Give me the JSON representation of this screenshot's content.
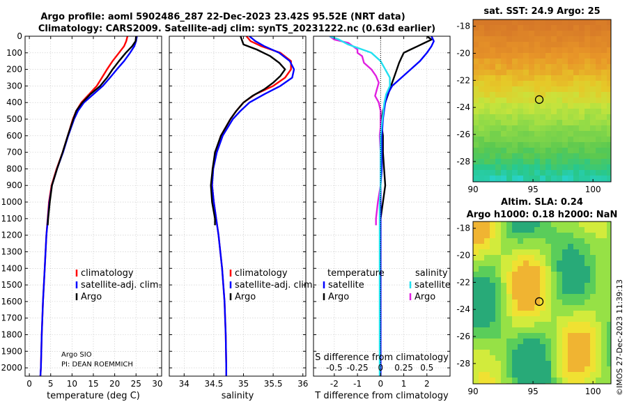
{
  "header": {
    "title_line1": "Argo profile: aoml 5902486_287 22-Dec-2023 23.42S 95.52E (NRT data)",
    "title_line2": "Climatology: CARS2009. Satellite-adj clim: synTS_20231222.nc (0.63d earlier)"
  },
  "colors": {
    "climatology": "#ff0000",
    "satellite": "#0000ff",
    "argo": "#000000",
    "sat_temp": "#22e0f0",
    "sat_sal": "#e020e0"
  },
  "credit": {
    "line1": "Argo SIO",
    "line2": "PI: DEAN ROEMMICH"
  },
  "imos_stamp": "©IMOS 27-Dec-2023 11:39:13",
  "chart_data": [
    {
      "id": "temperature",
      "type": "line",
      "xlabel": "temperature (deg C)",
      "xlim": [
        -1,
        31
      ],
      "xticks": [
        0,
        5,
        10,
        15,
        20,
        25,
        30
      ],
      "ylim": [
        0,
        2050
      ],
      "yticks": [
        0,
        100,
        200,
        300,
        400,
        500,
        600,
        700,
        800,
        900,
        1000,
        1100,
        1200,
        1300,
        1400,
        1500,
        1600,
        1700,
        1800,
        1900,
        2000
      ],
      "legend": [
        "climatology",
        "satellite-adj. clim.",
        "Argo"
      ],
      "series": [
        {
          "name": "climatology",
          "depth": [
            0,
            30,
            60,
            100,
            150,
            200,
            250,
            300,
            350,
            400,
            450,
            500,
            600,
            700,
            800,
            900,
            1000,
            1200,
            1400,
            1600,
            1800,
            2000,
            2050
          ],
          "values": [
            23.0,
            22.7,
            22.2,
            21.0,
            19.5,
            18.2,
            17.0,
            15.8,
            14.0,
            12.2,
            11.0,
            10.2,
            9.0,
            7.8,
            6.4,
            5.2,
            4.6,
            4.0,
            3.6,
            3.2,
            2.9,
            2.7,
            2.6
          ]
        },
        {
          "name": "satellite-adj. clim.",
          "depth": [
            0,
            30,
            60,
            100,
            150,
            200,
            250,
            300,
            350,
            400,
            450,
            500,
            600,
            700,
            800,
            900,
            1000,
            1200,
            1400,
            1600,
            1800,
            2000,
            2050
          ],
          "values": [
            25.2,
            25.0,
            24.6,
            23.6,
            22.2,
            20.5,
            18.9,
            17.2,
            15.0,
            12.8,
            11.4,
            10.5,
            9.1,
            7.9,
            6.5,
            5.3,
            4.7,
            4.0,
            3.6,
            3.2,
            2.9,
            2.7,
            2.6
          ]
        },
        {
          "name": "Argo",
          "depth": [
            0,
            30,
            60,
            100,
            150,
            200,
            250,
            300,
            350,
            400,
            450,
            500,
            600,
            700,
            800,
            900,
            1000,
            1100,
            1140
          ],
          "values": [
            25.0,
            24.9,
            24.1,
            22.6,
            21.0,
            19.5,
            18.2,
            16.6,
            14.3,
            12.4,
            11.0,
            10.3,
            9.0,
            7.8,
            6.5,
            5.3,
            4.8,
            4.4,
            4.3
          ]
        }
      ]
    },
    {
      "id": "salinity",
      "type": "line",
      "xlabel": "salinity",
      "xlim": [
        33.75,
        36.05
      ],
      "xticks": [
        34,
        34.5,
        35,
        35.5,
        36
      ],
      "ylim": [
        0,
        2050
      ],
      "legend": [
        "climatology",
        "satellite-adj. clim.",
        "Argo"
      ],
      "series": [
        {
          "name": "climatology",
          "depth": [
            0,
            30,
            60,
            100,
            150,
            200,
            250,
            300,
            350,
            400,
            450,
            500,
            600,
            700,
            800,
            900,
            1000,
            1200,
            1400,
            1600,
            1800,
            2000,
            2050
          ],
          "values": [
            35.05,
            35.12,
            35.3,
            35.62,
            35.8,
            35.8,
            35.7,
            35.5,
            35.2,
            35.0,
            34.88,
            34.78,
            34.62,
            34.53,
            34.48,
            34.47,
            34.5,
            34.58,
            34.64,
            34.68,
            34.7,
            34.71,
            34.71
          ]
        },
        {
          "name": "satellite-adj. clim.",
          "depth": [
            0,
            30,
            60,
            100,
            150,
            200,
            250,
            300,
            350,
            400,
            450,
            500,
            600,
            700,
            800,
            900,
            1000,
            1200,
            1400,
            1600,
            1800,
            2000,
            2050
          ],
          "values": [
            35.1,
            35.2,
            35.35,
            35.6,
            35.78,
            35.85,
            35.82,
            35.62,
            35.35,
            35.1,
            34.95,
            34.82,
            34.65,
            34.55,
            34.49,
            34.47,
            34.5,
            34.58,
            34.64,
            34.68,
            34.7,
            34.71,
            34.71
          ]
        },
        {
          "name": "Argo",
          "depth": [
            0,
            20,
            50,
            80,
            120,
            160,
            200,
            240,
            280,
            320,
            360,
            400,
            450,
            500,
            600,
            700,
            800,
            900,
            1000,
            1100,
            1140
          ],
          "values": [
            34.95,
            34.97,
            35.0,
            35.22,
            35.45,
            35.6,
            35.7,
            35.62,
            35.5,
            35.35,
            35.15,
            35.0,
            34.88,
            34.78,
            34.62,
            34.52,
            34.48,
            34.45,
            34.47,
            34.52,
            34.52
          ]
        }
      ]
    },
    {
      "id": "difference",
      "type": "line",
      "xlabel": "T difference from climatology",
      "top_label": "S difference from climatology",
      "xlim": [
        -2.9,
        3.0
      ],
      "xticks": [
        -2,
        -1,
        0,
        1,
        2
      ],
      "s_ticks": [
        "-0.5",
        "-0.25",
        "0",
        "0.25",
        "0.5"
      ],
      "ylim": [
        0,
        2050
      ],
      "legend_headers": [
        "temperature",
        "salinity"
      ],
      "legend": [
        "satellite",
        "Argo",
        "satellite",
        "Argo"
      ],
      "series": [
        {
          "name": "temperature Argo",
          "depth": [
            0,
            20,
            40,
            60,
            80,
            100,
            130,
            160,
            200,
            240,
            280,
            320,
            360,
            400,
            450,
            500,
            550,
            600,
            700,
            800,
            900,
            1000,
            1100,
            1140
          ],
          "values": [
            2.0,
            2.2,
            1.9,
            1.6,
            1.3,
            1.0,
            0.9,
            0.8,
            0.7,
            0.6,
            0.5,
            0.4,
            0.3,
            0.2,
            0.1,
            0.05,
            0.05,
            0.1,
            0.1,
            0.15,
            0.2,
            0.1,
            0.0,
            0.0
          ]
        },
        {
          "name": "temperature satellite",
          "depth": [
            0,
            30,
            60,
            100,
            150,
            200,
            250,
            300,
            350,
            400,
            450,
            500,
            600,
            700,
            800,
            900,
            1000,
            1200,
            1400,
            1600,
            1800,
            2000,
            2050
          ],
          "values": [
            2.2,
            2.3,
            2.2,
            2.0,
            1.7,
            1.3,
            0.9,
            0.5,
            0.3,
            0.2,
            0.15,
            0.1,
            0.05,
            0.05,
            0.05,
            0.0,
            0.0,
            0.0,
            0.0,
            0.0,
            0.0,
            0.0,
            0.0
          ]
        },
        {
          "name": "salinity Argo",
          "depth": [
            0,
            20,
            40,
            60,
            80,
            100,
            120,
            160,
            200,
            240,
            280,
            320,
            360,
            400,
            450,
            500,
            550,
            600,
            700,
            800,
            900,
            1000,
            1100,
            1140
          ],
          "values": [
            -0.55,
            -0.5,
            -0.35,
            -0.3,
            -0.25,
            -0.25,
            -0.2,
            -0.18,
            -0.1,
            -0.05,
            -0.02,
            -0.04,
            -0.06,
            -0.02,
            0.0,
            0.0,
            0.0,
            -0.01,
            0.0,
            0.0,
            0.0,
            -0.03,
            -0.05,
            -0.05
          ]
        },
        {
          "name": "salinity satellite",
          "depth": [
            0,
            20,
            50,
            80,
            100,
            150,
            200,
            250,
            300,
            350,
            400,
            450,
            500,
            600,
            700,
            800,
            900,
            1000,
            1200,
            1400,
            1600,
            1800,
            2000,
            2050
          ],
          "values": [
            -0.55,
            -0.45,
            -0.35,
            -0.2,
            -0.1,
            0.0,
            0.05,
            0.1,
            0.1,
            0.06,
            0.04,
            0.03,
            0.02,
            0.0,
            0.0,
            0.0,
            0.0,
            -0.01,
            -0.01,
            -0.01,
            -0.01,
            -0.01,
            -0.01,
            -0.01
          ]
        }
      ]
    },
    {
      "id": "sst_map",
      "type": "heatmap",
      "title": "sat. SST: 24.9 Argo: 25",
      "xlim": [
        90,
        101.5
      ],
      "ylim": [
        -29.5,
        -17.5
      ],
      "xticks": [
        90,
        95,
        100
      ],
      "yticks": [
        -18,
        -20,
        -22,
        -24,
        -26,
        -28
      ],
      "marker": {
        "lon": 95.52,
        "lat": -23.42
      }
    },
    {
      "id": "sla_map",
      "type": "heatmap",
      "title_line1": "Altim. SLA: 0.24",
      "title_line2": "Argo h1000: 0.18 h2000: NaN",
      "xlim": [
        90,
        101.5
      ],
      "ylim": [
        -29.5,
        -17.5
      ],
      "xticks": [
        90,
        95,
        100
      ],
      "yticks": [
        -18,
        -20,
        -22,
        -24,
        -26,
        -28
      ],
      "marker": {
        "lon": 95.52,
        "lat": -23.42
      }
    }
  ]
}
